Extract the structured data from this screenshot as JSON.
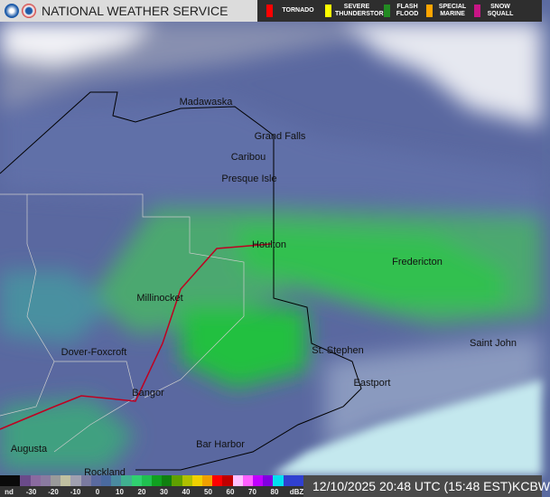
{
  "header": {
    "title": "National Weather Service",
    "warnings": [
      {
        "label": "TORNADO",
        "color": "#ff0000"
      },
      {
        "label": "SEVERE THUNDERSTORM",
        "color": "#ffff00"
      },
      {
        "label": "FLASH FLOOD",
        "color": "#228b22"
      },
      {
        "label": "SPECIAL MARINE",
        "color": "#ffa500"
      },
      {
        "label": "SNOW SQUALL",
        "color": "#c71585"
      }
    ]
  },
  "cities": [
    "Madawaska",
    "Grand Falls",
    "Caribou",
    "Presque Isle",
    "Houlton",
    "Fredericton",
    "Millinocket",
    "Dover-Foxcroft",
    "St. Stephen",
    "Saint John",
    "Eastport",
    "Bangor",
    "Bar Harbor",
    "Augusta",
    "Rockland"
  ],
  "legend": {
    "labels": [
      "nd",
      "-30",
      "-20",
      "-10",
      "0",
      "10",
      "20",
      "30",
      "40",
      "50",
      "60",
      "70",
      "80",
      "dBZ"
    ],
    "colors": [
      "#0a0a0a",
      "#0a0a0a",
      "#6a4a8a",
      "#8a6aa0",
      "#8a7aa0",
      "#9a9a9a",
      "#c0c0a0",
      "#a0a0b0",
      "#7a7aa0",
      "#5a6aa0",
      "#4a6aa0",
      "#4a8aa0",
      "#40b090",
      "#30d070",
      "#20c050",
      "#10a020",
      "#108010",
      "#60a000",
      "#b0c000",
      "#f0d000",
      "#f0a000",
      "#ff0000",
      "#c00000",
      "#ffc0ff",
      "#ff60ff",
      "#c000ff",
      "#8000e0",
      "#00e0f0",
      "#3040d0",
      "#3040d0"
    ]
  },
  "timestamp": "12/10/2025 20:48 UTC (15:48 EST)KCBW"
}
